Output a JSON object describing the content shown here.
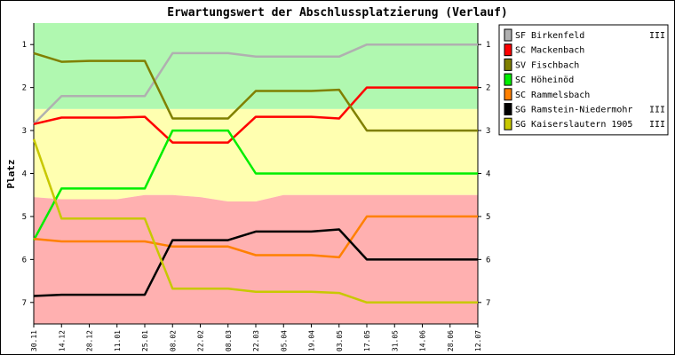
{
  "chart_data": {
    "type": "line",
    "title": "Erwartungswert der Abschlussplatzierung (Verlauf)",
    "ylabel": "Platz",
    "xlabel": "",
    "ylim": [
      0.5,
      7.5
    ],
    "y_inverted": true,
    "grid": false,
    "legend": "right",
    "yticks": [
      1,
      2,
      3,
      4,
      5,
      6,
      7
    ],
    "categories": [
      "30.11",
      "14.12",
      "28.12",
      "11.01",
      "25.01",
      "08.02",
      "22.02",
      "08.03",
      "22.03",
      "05.04",
      "19.04",
      "03.05",
      "17.05",
      "31.05",
      "14.06",
      "28.06",
      "12.07"
    ],
    "bands": [
      {
        "name": "green",
        "color": "#b0f8b0",
        "top": [
          0.5,
          0.5,
          0.5,
          0.5,
          0.5,
          0.5,
          0.5,
          0.5,
          0.5,
          0.5,
          0.5,
          0.5,
          0.5,
          0.5,
          0.5,
          0.5,
          0.5
        ],
        "bottom": [
          2.5,
          2.5,
          2.5,
          2.5,
          2.5,
          2.5,
          2.5,
          2.5,
          2.5,
          2.5,
          2.5,
          2.5,
          2.5,
          2.5,
          2.5,
          2.5,
          2.5
        ]
      },
      {
        "name": "yellow",
        "color": "#ffffb0",
        "top": [
          2.5,
          2.5,
          2.5,
          2.5,
          2.5,
          2.5,
          2.5,
          2.5,
          2.5,
          2.5,
          2.5,
          2.5,
          2.5,
          2.5,
          2.5,
          2.5,
          2.5
        ],
        "bottom": [
          4.55,
          4.6,
          4.6,
          4.6,
          4.5,
          4.5,
          4.55,
          4.65,
          4.65,
          4.5,
          4.5,
          4.5,
          4.5,
          4.5,
          4.5,
          4.5,
          4.5
        ]
      },
      {
        "name": "red",
        "color": "#ffb0b0",
        "top": [
          4.55,
          4.6,
          4.6,
          4.6,
          4.5,
          4.5,
          4.55,
          4.65,
          4.65,
          4.5,
          4.5,
          4.5,
          4.5,
          4.5,
          4.5,
          4.5,
          4.5
        ],
        "bottom": [
          7.5,
          7.5,
          7.5,
          7.5,
          7.5,
          7.5,
          7.5,
          7.5,
          7.5,
          7.5,
          7.5,
          7.5,
          7.5,
          7.5,
          7.5,
          7.5,
          7.5
        ]
      }
    ],
    "series": [
      {
        "name": "SF Birkenfeld",
        "suffix": "III",
        "color": "#b0b0b0",
        "values": [
          2.85,
          2.2,
          2.2,
          2.2,
          2.2,
          1.2,
          1.2,
          1.2,
          1.28,
          1.28,
          1.28,
          1.28,
          1.0,
          1.0,
          1.0,
          1.0,
          1.0
        ]
      },
      {
        "name": "SC Mackenbach",
        "suffix": "",
        "color": "#ff0000",
        "values": [
          2.85,
          2.7,
          2.7,
          2.7,
          2.68,
          3.28,
          3.28,
          3.28,
          2.68,
          2.68,
          2.68,
          2.72,
          2.0,
          2.0,
          2.0,
          2.0,
          2.0
        ]
      },
      {
        "name": "SV Fischbach",
        "suffix": "",
        "color": "#808000",
        "values": [
          1.2,
          1.4,
          1.38,
          1.38,
          1.38,
          2.72,
          2.72,
          2.72,
          2.08,
          2.08,
          2.08,
          2.05,
          3.0,
          3.0,
          3.0,
          3.0,
          3.0
        ]
      },
      {
        "name": "SC Höheinöd",
        "suffix": "",
        "color": "#00ee00",
        "values": [
          5.55,
          4.35,
          4.35,
          4.35,
          4.35,
          3.0,
          3.0,
          3.0,
          4.0,
          4.0,
          4.0,
          4.0,
          4.0,
          4.0,
          4.0,
          4.0,
          4.0
        ]
      },
      {
        "name": "SC Rammelsbach",
        "suffix": "",
        "color": "#ff8000",
        "values": [
          5.52,
          5.58,
          5.58,
          5.58,
          5.58,
          5.7,
          5.7,
          5.7,
          5.9,
          5.9,
          5.9,
          5.95,
          5.0,
          5.0,
          5.0,
          5.0,
          5.0
        ]
      },
      {
        "name": "SG Ramstein-Niedermohr",
        "suffix": "III",
        "color": "#000000",
        "values": [
          6.85,
          6.82,
          6.82,
          6.82,
          6.82,
          5.55,
          5.55,
          5.55,
          5.35,
          5.35,
          5.35,
          5.3,
          6.0,
          6.0,
          6.0,
          6.0,
          6.0
        ]
      },
      {
        "name": "SG Kaiserslautern 1905",
        "suffix": "III",
        "color": "#c8c800",
        "values": [
          3.2,
          5.05,
          5.05,
          5.05,
          5.05,
          6.68,
          6.68,
          6.68,
          6.75,
          6.75,
          6.75,
          6.78,
          7.0,
          7.0,
          7.0,
          7.0,
          7.0
        ]
      }
    ]
  }
}
